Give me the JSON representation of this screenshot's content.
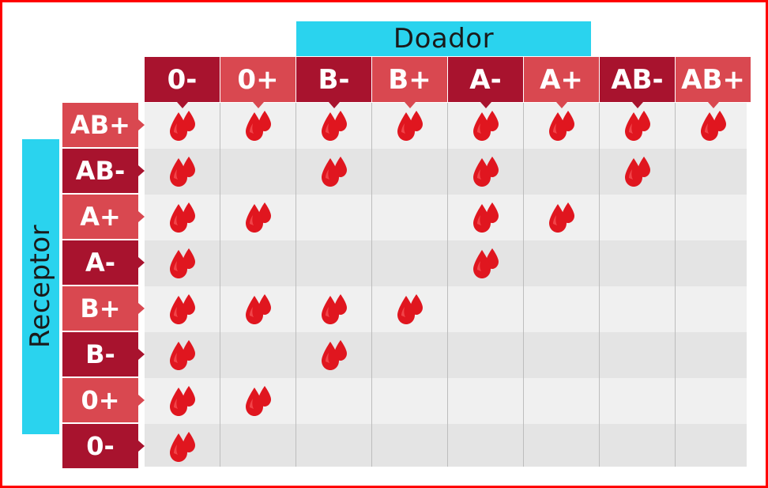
{
  "donor_label": "Doador",
  "receiver_label": "Receptor",
  "colors": {
    "dark": "#a8132e",
    "light": "#d94850",
    "accent": "#2ad3ee",
    "drop": "#e0161f",
    "row_light": "#f0f0f0",
    "row_dark": "#e4e4e4",
    "border": "#ff0000"
  },
  "donors": [
    "0-",
    "0+",
    "B-",
    "B+",
    "A-",
    "A+",
    "AB-",
    "AB+"
  ],
  "receivers": [
    "AB+",
    "AB-",
    "A+",
    "A-",
    "B+",
    "B-",
    "0+",
    "0-"
  ],
  "compatibility": [
    [
      1,
      1,
      1,
      1,
      1,
      1,
      1,
      1
    ],
    [
      1,
      0,
      1,
      0,
      1,
      0,
      1,
      0
    ],
    [
      1,
      1,
      0,
      0,
      1,
      1,
      0,
      0
    ],
    [
      1,
      0,
      0,
      0,
      1,
      0,
      0,
      0
    ],
    [
      1,
      1,
      1,
      1,
      0,
      0,
      0,
      0
    ],
    [
      1,
      0,
      1,
      0,
      0,
      0,
      0,
      0
    ],
    [
      1,
      1,
      0,
      0,
      0,
      0,
      0,
      0
    ],
    [
      1,
      0,
      0,
      0,
      0,
      0,
      0,
      0
    ]
  ],
  "icons": {
    "drop": "blood-drop-icon"
  }
}
